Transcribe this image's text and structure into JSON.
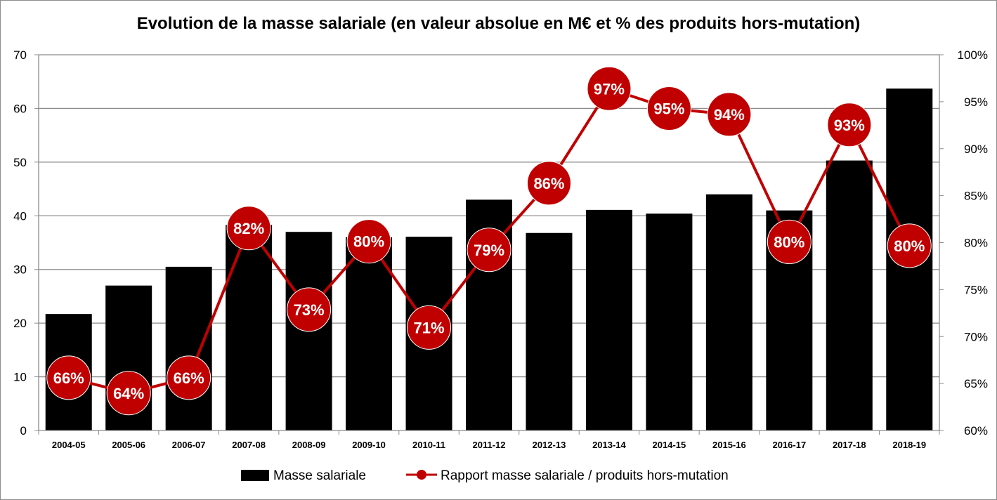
{
  "chart_data": {
    "type": "bar",
    "title": "Evolution de la masse salariale (en valeur absolue en M€ et % des produits hors-mutation)",
    "categories": [
      "2004-05",
      "2005-06",
      "2006-07",
      "2007-08",
      "2008-09",
      "2009-10",
      "2010-11",
      "2011-12",
      "2012-13",
      "2013-14",
      "2014-15",
      "2015-16",
      "2016-17",
      "2017-18",
      "2018-19"
    ],
    "series": [
      {
        "name": "Masse salariale",
        "type": "bar",
        "axis": "left",
        "color": "#000000",
        "values": [
          21.7,
          27.0,
          30.5,
          38.3,
          37.0,
          36.0,
          36.1,
          43.0,
          36.8,
          41.1,
          40.4,
          44.0,
          41.0,
          50.3,
          63.7
        ]
      },
      {
        "name": "Rapport masse salariale / produits hors-mutation",
        "type": "line",
        "axis": "right",
        "color": "#c00000",
        "values": [
          0.66,
          0.64,
          0.66,
          0.82,
          0.73,
          0.8,
          0.71,
          0.79,
          0.86,
          0.97,
          0.95,
          0.94,
          0.8,
          0.93,
          0.8
        ],
        "labels": [
          "66%",
          "64%",
          "66%",
          "82%",
          "73%",
          "80%",
          "71%",
          "79%",
          "86%",
          "97%",
          "95%",
          "94%",
          "80%",
          "93%",
          "80%"
        ],
        "positions": [
          0.6562,
          0.6398,
          0.6562,
          0.8155,
          0.7287,
          0.8014,
          0.7096,
          0.7923,
          0.8633,
          0.9639,
          0.9428,
          0.9365,
          0.8008,
          0.9254,
          0.7967
        ]
      }
    ],
    "y_left": {
      "min": 0,
      "max": 70,
      "ticks": [
        "0",
        "10",
        "20",
        "30",
        "40",
        "50",
        "60",
        "70"
      ]
    },
    "y_right": {
      "min": 0.6,
      "max": 1.0,
      "ticks": [
        "60%",
        "65%",
        "70%",
        "75%",
        "80%",
        "85%",
        "90%",
        "95%",
        "100%"
      ]
    },
    "grid": true,
    "legend_position": "bottom"
  }
}
